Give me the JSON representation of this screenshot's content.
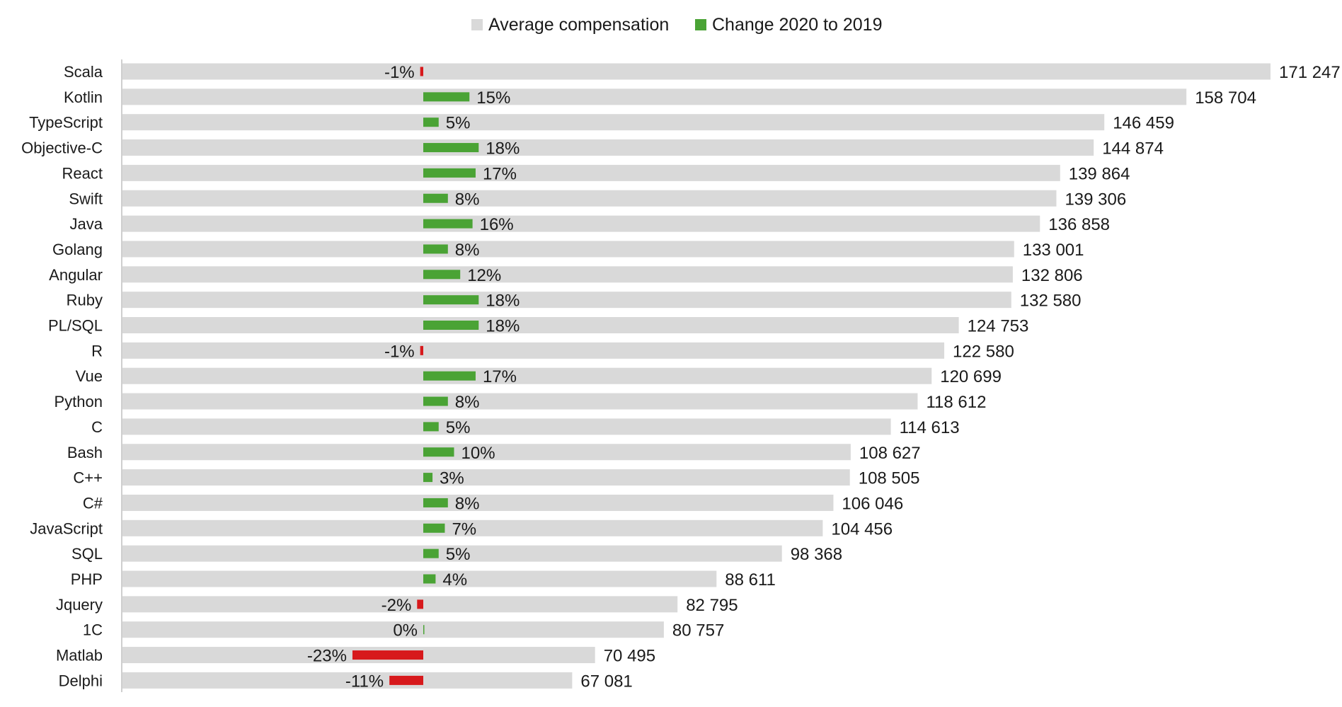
{
  "chart_data": {
    "type": "bar",
    "orientation": "horizontal",
    "legend": {
      "placement": "top",
      "entries": [
        {
          "name": "Average compensation",
          "color": "#d9d9d9"
        },
        {
          "name": "Change 2020 to 2019",
          "color": "#4aa335"
        }
      ]
    },
    "negative_color": "#d7191c",
    "categories": [
      "Scala",
      "Kotlin",
      "TypeScript",
      "Objective-C",
      "React",
      "Swift",
      "Java",
      "Golang",
      "Angular",
      "Ruby",
      "PL/SQL",
      "R",
      "Vue",
      "Python",
      "C",
      "Bash",
      "C++",
      "C#",
      "JavaScript",
      "SQL",
      "PHP",
      "Jquery",
      "1C",
      "Matlab",
      "Delphi"
    ],
    "series": [
      {
        "name": "Average compensation",
        "values": [
          171247,
          158704,
          146459,
          144874,
          139864,
          139306,
          136858,
          133001,
          132806,
          132580,
          124753,
          122580,
          120699,
          118612,
          114613,
          108627,
          108505,
          106046,
          104456,
          98368,
          88611,
          82795,
          80757,
          70495,
          67081
        ],
        "labels": [
          "171 247",
          "158 704",
          "146 459",
          "144 874",
          "139 864",
          "139 306",
          "136 858",
          "133 001",
          "132 806",
          "132 580",
          "124 753",
          "122 580",
          "120 699",
          "118 612",
          "114 613",
          "108 627",
          "108 505",
          "106 046",
          "104 456",
          "98 368",
          "88 611",
          "82 795",
          "80 757",
          "70 495",
          "67 081"
        ]
      },
      {
        "name": "Change 2020 to 2019",
        "values": [
          -1,
          15,
          5,
          18,
          17,
          8,
          16,
          8,
          12,
          18,
          18,
          -1,
          17,
          8,
          5,
          10,
          3,
          8,
          7,
          5,
          4,
          -2,
          0,
          -23,
          -11
        ],
        "labels": [
          "-1%",
          "15%",
          "5%",
          "18%",
          "17%",
          "8%",
          "16%",
          "8%",
          "12%",
          "18%",
          "18%",
          "-1%",
          "17%",
          "8%",
          "5%",
          "10%",
          "3%",
          "8%",
          "7%",
          "5%",
          "4%",
          "-2%",
          "0%",
          "-23%",
          "-11%"
        ]
      }
    ],
    "xlim": [
      0,
      171247
    ],
    "grid": false
  }
}
